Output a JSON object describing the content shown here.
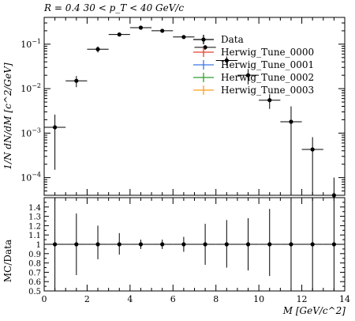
{
  "title": "R = 0.4 30 < p_T < 40 GeV/c",
  "chart_data": [
    {
      "type": "scatter",
      "panel": "main",
      "ylabel": "1/N dN/dM [c^2/GeV]",
      "yscale": "log",
      "ylim": [
        4e-05,
        0.4
      ],
      "xlim": [
        0,
        14
      ],
      "y_tick_labels": [
        "10^-1",
        "10^-2",
        "10^-3",
        "10^-4"
      ],
      "legend_position": "top-right",
      "series": [
        {
          "name": "Data",
          "color": "#000000",
          "x": [
            0.5,
            1.5,
            2.5,
            3.5,
            4.5,
            5.5,
            6.5,
            7.5,
            8.5,
            9.5,
            10.5,
            11.5,
            12.5,
            13.5
          ],
          "x_err": 0.5,
          "y": [
            0.00135,
            0.015,
            0.077,
            0.165,
            0.235,
            0.2,
            0.145,
            0.085,
            0.043,
            0.02,
            0.0055,
            0.0018,
            0.00043,
            4e-05
          ],
          "y_low": [
            0.00015,
            0.0108,
            0.065,
            0.158,
            0.225,
            0.19,
            0.135,
            0.075,
            0.033,
            0.0125,
            0.0035,
            3.3e-05,
            3e-05,
            3.3e-05
          ],
          "y_high": [
            0.0026,
            0.0192,
            0.089,
            0.172,
            0.245,
            0.21,
            0.155,
            0.095,
            0.053,
            0.0275,
            0.0075,
            0.004,
            0.00081,
            0.0001
          ]
        },
        {
          "name": "Herwig_Tune_0000",
          "color": "#e8402a"
        },
        {
          "name": "Herwig_Tune_0001",
          "color": "#3b76e8"
        },
        {
          "name": "Herwig_Tune_0002",
          "color": "#2ca02c"
        },
        {
          "name": "Herwig_Tune_0003",
          "color": "#ff9e16"
        }
      ]
    },
    {
      "type": "scatter",
      "panel": "ratio",
      "ylabel": "MC/Data",
      "xlabel": "M [GeV/c^2]",
      "xlim": [
        0,
        14
      ],
      "ylim": [
        0.5,
        1.5
      ],
      "x_ticks": [
        0,
        2,
        4,
        6,
        8,
        10,
        12,
        14
      ],
      "y_ticks": [
        0.5,
        0.6,
        0.7,
        0.8,
        0.9,
        1,
        1.1,
        1.2,
        1.3,
        1.4
      ],
      "series": [
        {
          "name": "Data",
          "x": [
            0.5,
            1.5,
            2.5,
            3.5,
            4.5,
            5.5,
            6.5,
            7.5,
            8.5,
            9.5,
            10.5,
            11.5,
            12.5,
            13.5
          ],
          "y": [
            1,
            1,
            1,
            1,
            1,
            1,
            1,
            1,
            1,
            1,
            1,
            1,
            1,
            1
          ],
          "y_low": [
            0.5,
            0.67,
            0.84,
            0.89,
            0.95,
            0.95,
            0.92,
            0.78,
            0.75,
            0.72,
            0.66,
            0.5,
            0.5,
            0.5
          ],
          "y_high": [
            1.5,
            1.33,
            1.2,
            1.12,
            1.05,
            1.05,
            1.08,
            1.22,
            1.26,
            1.28,
            1.38,
            1.5,
            1.5,
            1.5
          ]
        }
      ]
    }
  ]
}
